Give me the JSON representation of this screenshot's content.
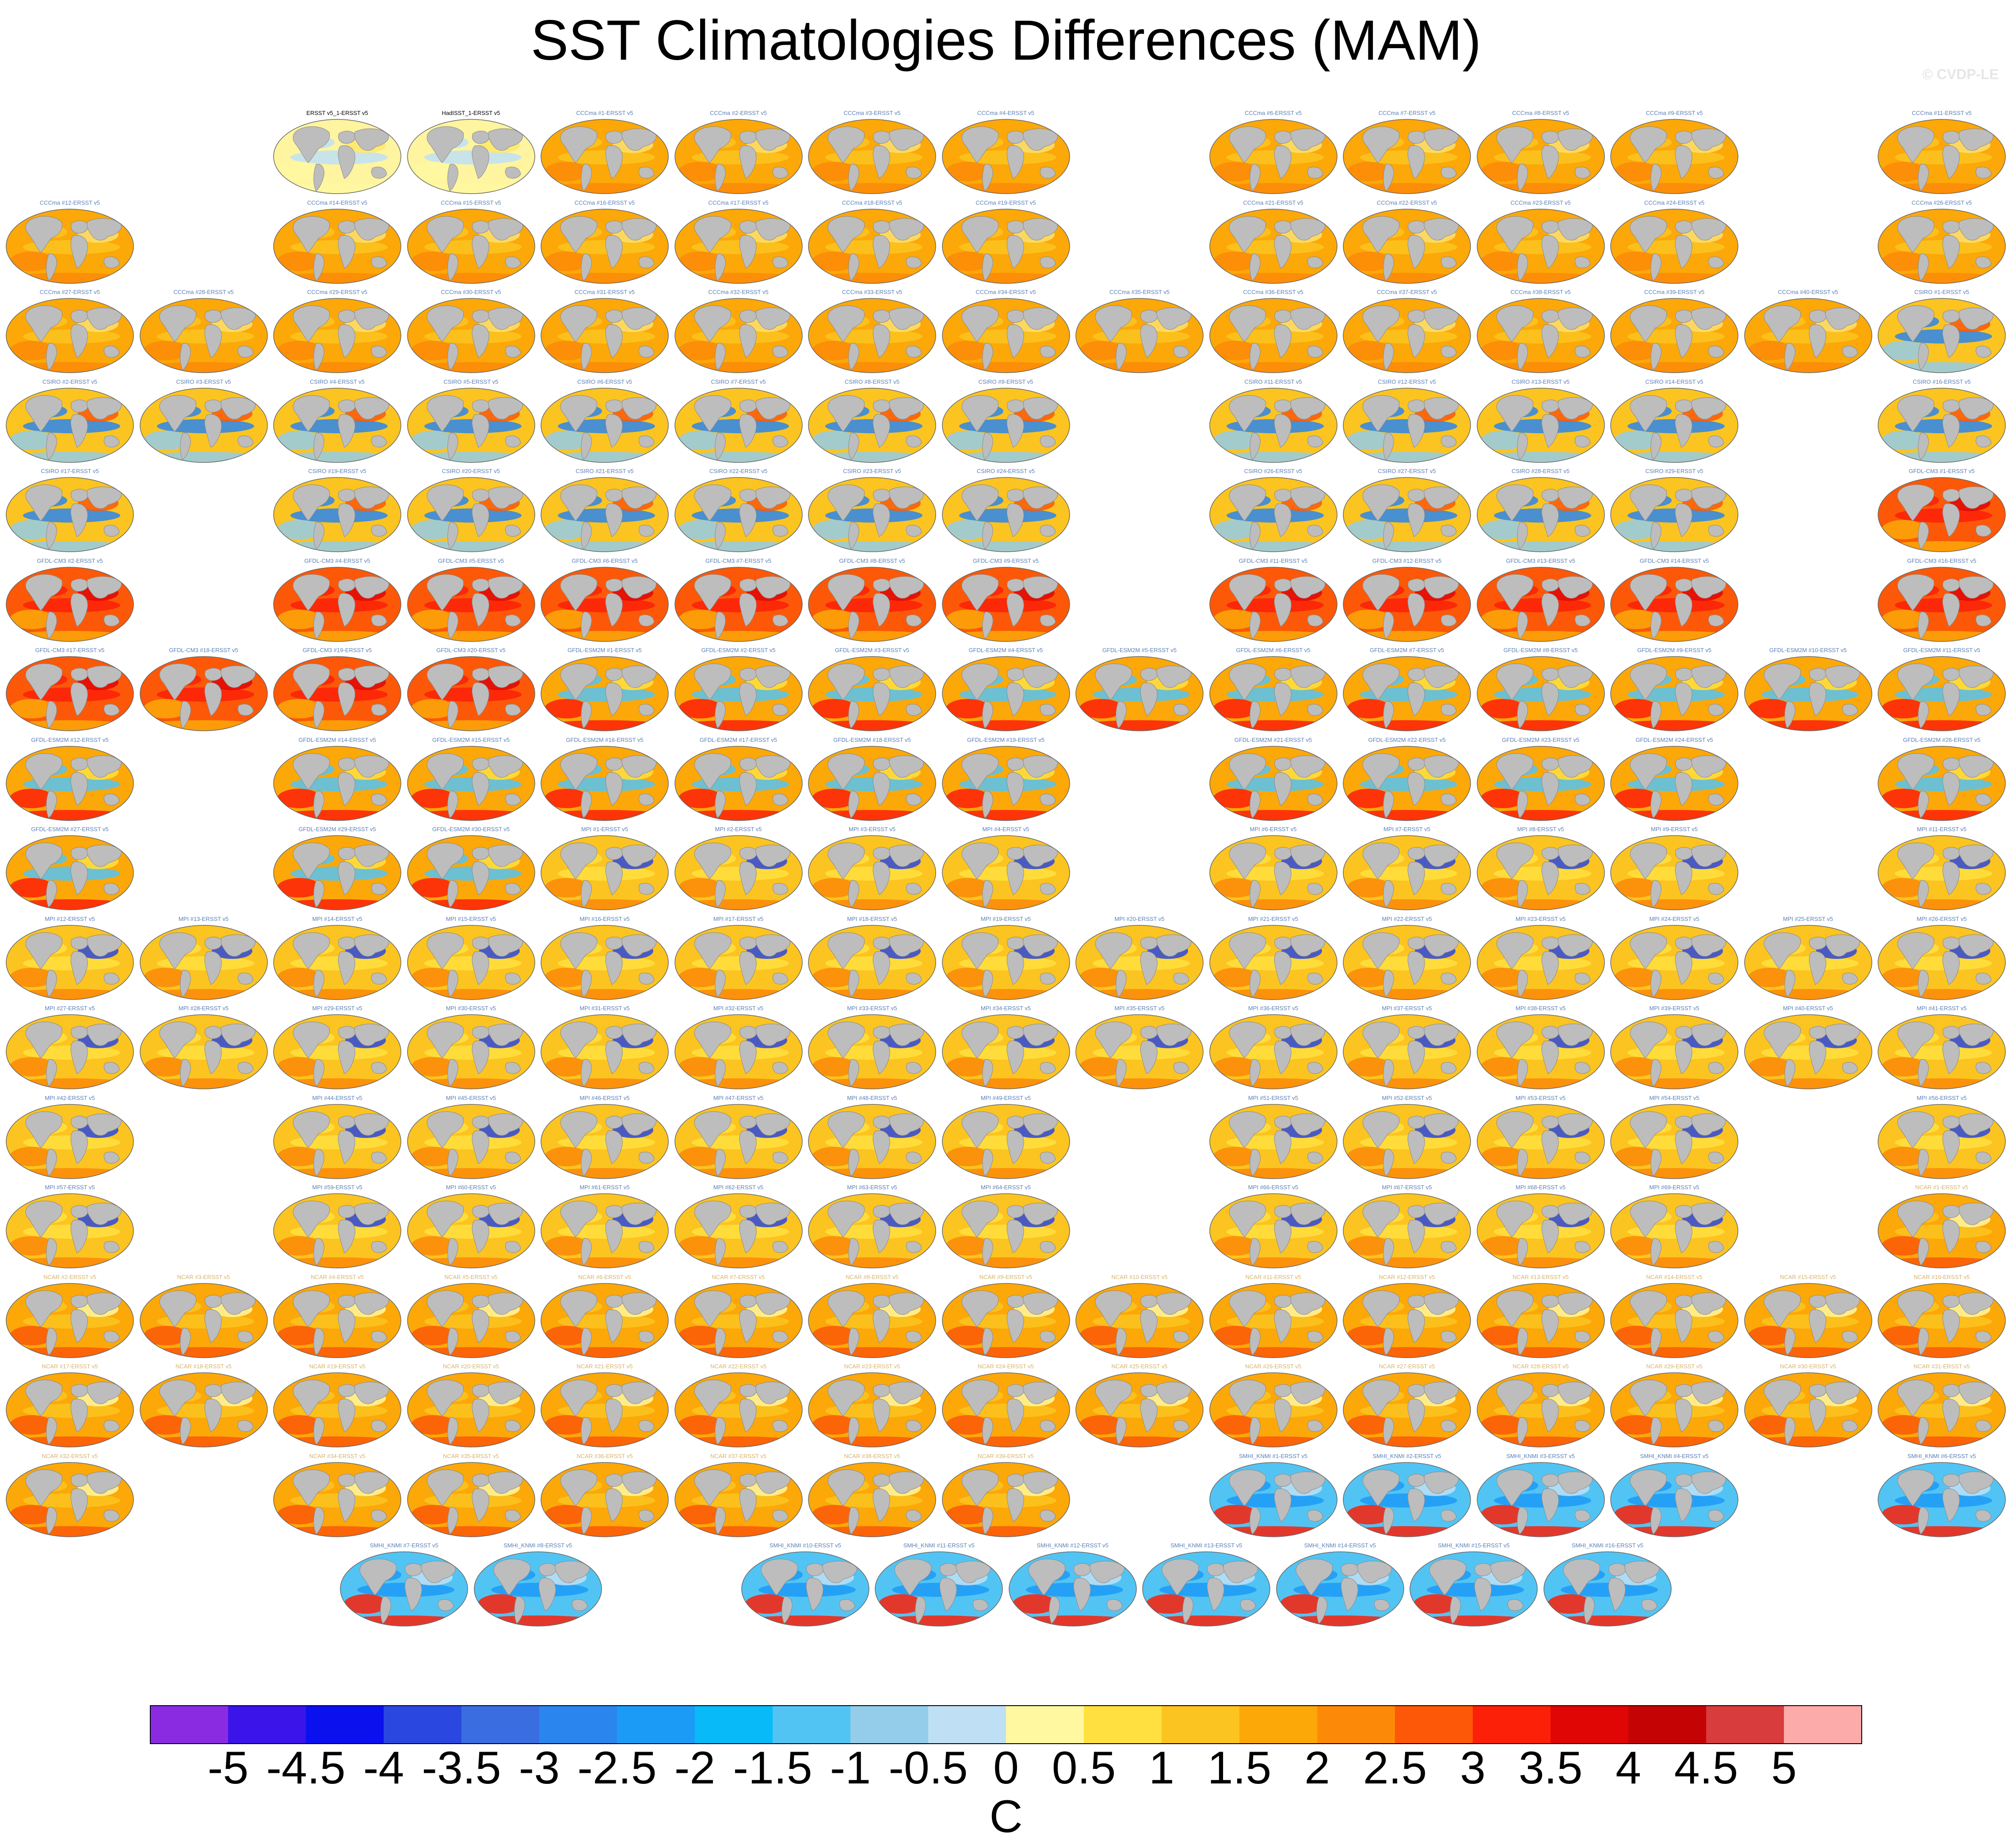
{
  "title": "SST Climatologies Differences (MAM)",
  "watermark": "© CVDP-LE",
  "chart_data": {
    "type": "heatmap",
    "title": "SST Climatologies Differences (MAM)",
    "colorbar": {
      "ticks": [
        "-5",
        "-4.5",
        "-4",
        "-3.5",
        "-3",
        "-2.5",
        "-2",
        "-1.5",
        "-1",
        "-0.5",
        "0",
        "0.5",
        "1",
        "1.5",
        "2",
        "2.5",
        "3",
        "3.5",
        "4",
        "4.5",
        "5"
      ],
      "levels": [
        -5,
        -4.5,
        -4,
        -3.5,
        -3,
        -2.5,
        -2,
        -1.5,
        -1,
        -0.5,
        0,
        0.5,
        1,
        1.5,
        2,
        2.5,
        3,
        3.5,
        4,
        4.5,
        5
      ],
      "colors": [
        "#8a2be2",
        "#3a14e8",
        "#0a10ee",
        "#2a48e0",
        "#3a6ee0",
        "#2a86ee",
        "#1c9bf6",
        "#08baf8",
        "#52c4f4",
        "#94cdea",
        "#bfe0f4",
        "#fff8a0",
        "#ffe040",
        "#fcc420",
        "#fca808",
        "#fc8a08",
        "#fc5808",
        "#fc2008",
        "#e00606",
        "#c40404",
        "#d83c3c",
        "#fcaaaa"
      ],
      "unit": "C"
    },
    "panel_rows": [
      {
        "cols": [
          2,
          3,
          4,
          5,
          6,
          7,
          9,
          10,
          11,
          12,
          14
        ],
        "labels": [
          "ERSST v5_1-ERSST v5",
          "HadISST_1-ERSST v5",
          "CCCma #1-ERSST v5",
          "CCCma #2-ERSST v5",
          "CCCma #3-ERSST v5",
          "CCCma #4-ERSST v5",
          "CCCma #6-ERSST v5",
          "CCCma #7-ERSST v5",
          "CCCma #8-ERSST v5",
          "CCCma #9-ERSST v5",
          "CCCma #11-ERSST v5"
        ],
        "style": [
          "obs",
          "obs",
          "warm",
          "warm",
          "warm",
          "warm",
          "warm",
          "warm",
          "warm",
          "warm",
          "warm"
        ]
      },
      {
        "cols": [
          0,
          2,
          3,
          4,
          5,
          6,
          7,
          9,
          10,
          11,
          12,
          14
        ],
        "labels": [
          "CCCma #12-ERSST v5",
          "CCCma #14-ERSST v5",
          "CCCma #15-ERSST v5",
          "CCCma #16-ERSST v5",
          "CCCma #17-ERSST v5",
          "CCCma #18-ERSST v5",
          "CCCma #19-ERSST v5",
          "CCCma #21-ERSST v5",
          "CCCma #22-ERSST v5",
          "CCCma #23-ERSST v5",
          "CCCma #24-ERSST v5",
          "CCCma #26-ERSST v5"
        ],
        "style": "warm"
      },
      {
        "cols": [
          0,
          1,
          2,
          3,
          4,
          5,
          6,
          7,
          8,
          9,
          10,
          11,
          12,
          13,
          14
        ],
        "labels": [
          "CCCma #27-ERSST v5",
          "CCCma #28-ERSST v5",
          "CCCma #29-ERSST v5",
          "CCCma #30-ERSST v5",
          "CCCma #31-ERSST v5",
          "CCCma #32-ERSST v5",
          "CCCma #33-ERSST v5",
          "CCCma #34-ERSST v5",
          "CCCma #35-ERSST v5",
          "CCCma #36-ERSST v5",
          "CCCma #37-ERSST v5",
          "CCCma #38-ERSST v5",
          "CCCma #39-ERSST v5",
          "CCCma #40-ERSST v5",
          "CSIRO #1-ERSST v5"
        ],
        "style": [
          "warm",
          "warm",
          "warm",
          "warm",
          "warm",
          "warm",
          "warm",
          "warm",
          "warm",
          "warm",
          "warm",
          "warm",
          "warm",
          "warm",
          "csiro"
        ]
      },
      {
        "cols": [
          0,
          1,
          2,
          3,
          4,
          5,
          6,
          7,
          9,
          10,
          11,
          12,
          14
        ],
        "labels": [
          "CSIRO #2-ERSST v5",
          "CSIRO #3-ERSST v5",
          "CSIRO #4-ERSST v5",
          "CSIRO #5-ERSST v5",
          "CSIRO #6-ERSST v5",
          "CSIRO #7-ERSST v5",
          "CSIRO #8-ERSST v5",
          "CSIRO #9-ERSST v5",
          "CSIRO #11-ERSST v5",
          "CSIRO #12-ERSST v5",
          "CSIRO #13-ERSST v5",
          "CSIRO #14-ERSST v5",
          "CSIRO #16-ERSST v5"
        ],
        "style": "csiro"
      },
      {
        "cols": [
          0,
          2,
          3,
          4,
          5,
          6,
          7,
          9,
          10,
          11,
          12,
          14
        ],
        "labels": [
          "CSIRO #17-ERSST v5",
          "CSIRO #19-ERSST v5",
          "CSIRO #20-ERSST v5",
          "CSIRO #21-ERSST v5",
          "CSIRO #22-ERSST v5",
          "CSIRO #23-ERSST v5",
          "CSIRO #24-ERSST v5",
          "CSIRO #26-ERSST v5",
          "CSIRO #27-ERSST v5",
          "CSIRO #28-ERSST v5",
          "CSIRO #29-ERSST v5",
          "GFDL-CM3 #1-ERSST v5"
        ],
        "style": [
          "csiro",
          "csiro",
          "csiro",
          "csiro",
          "csiro",
          "csiro",
          "csiro",
          "csiro",
          "csiro",
          "csiro",
          "csiro",
          "hot"
        ]
      },
      {
        "cols": [
          0,
          2,
          3,
          4,
          5,
          6,
          7,
          9,
          10,
          11,
          12,
          14
        ],
        "labels": [
          "GFDL-CM3 #2-ERSST v5",
          "GFDL-CM3 #4-ERSST v5",
          "GFDL-CM3 #5-ERSST v5",
          "GFDL-CM3 #6-ERSST v5",
          "GFDL-CM3 #7-ERSST v5",
          "GFDL-CM3 #8-ERSST v5",
          "GFDL-CM3 #9-ERSST v5",
          "GFDL-CM3 #11-ERSST v5",
          "GFDL-CM3 #12-ERSST v5",
          "GFDL-CM3 #13-ERSST v5",
          "GFDL-CM3 #14-ERSST v5",
          "GFDL-CM3 #16-ERSST v5"
        ],
        "style": "hot"
      },
      {
        "cols": [
          0,
          1,
          2,
          3,
          4,
          5,
          6,
          7,
          8,
          9,
          10,
          11,
          12,
          13,
          14
        ],
        "labels": [
          "GFDL-CM3 #17-ERSST v5",
          "GFDL-CM3 #18-ERSST v5",
          "GFDL-CM3 #19-ERSST v5",
          "GFDL-CM3 #20-ERSST v5",
          "GFDL-ESM2M #1-ERSST v5",
          "GFDL-ESM2M #2-ERSST v5",
          "GFDL-ESM2M #3-ERSST v5",
          "GFDL-ESM2M #4-ERSST v5",
          "GFDL-ESM2M #5-ERSST v5",
          "GFDL-ESM2M #6-ERSST v5",
          "GFDL-ESM2M #7-ERSST v5",
          "GFDL-ESM2M #8-ERSST v5",
          "GFDL-ESM2M #9-ERSST v5",
          "GFDL-ESM2M #10-ERSST v5",
          "GFDL-ESM2M #11-ERSST v5"
        ],
        "style": [
          "hot",
          "hot",
          "hot",
          "hot",
          "gfdl",
          "gfdl",
          "gfdl",
          "gfdl",
          "gfdl",
          "gfdl",
          "gfdl",
          "gfdl",
          "gfdl",
          "gfdl",
          "gfdl"
        ]
      },
      {
        "cols": [
          0,
          2,
          3,
          4,
          5,
          6,
          7,
          9,
          10,
          11,
          12,
          14
        ],
        "labels": [
          "GFDL-ESM2M #12-ERSST v5",
          "GFDL-ESM2M #14-ERSST v5",
          "GFDL-ESM2M #15-ERSST v5",
          "GFDL-ESM2M #16-ERSST v5",
          "GFDL-ESM2M #17-ERSST v5",
          "GFDL-ESM2M #18-ERSST v5",
          "GFDL-ESM2M #19-ERSST v5",
          "GFDL-ESM2M #21-ERSST v5",
          "GFDL-ESM2M #22-ERSST v5",
          "GFDL-ESM2M #23-ERSST v5",
          "GFDL-ESM2M #24-ERSST v5",
          "GFDL-ESM2M #26-ERSST v5"
        ],
        "style": "gfdl"
      },
      {
        "cols": [
          0,
          2,
          3,
          4,
          5,
          6,
          7,
          9,
          10,
          11,
          12,
          14
        ],
        "labels": [
          "GFDL-ESM2M #27-ERSST v5",
          "GFDL-ESM2M #29-ERSST v5",
          "GFDL-ESM2M #30-ERSST v5",
          "MPI #1-ERSST v5",
          "MPI #2-ERSST v5",
          "MPI #3-ERSST v5",
          "MPI #4-ERSST v5",
          "MPI #6-ERSST v5",
          "MPI #7-ERSST v5",
          "MPI #8-ERSST v5",
          "MPI #9-ERSST v5",
          "MPI #11-ERSST v5"
        ],
        "style": [
          "gfdl",
          "gfdl",
          "gfdl",
          "mpi",
          "mpi",
          "mpi",
          "mpi",
          "mpi",
          "mpi",
          "mpi",
          "mpi",
          "mpi"
        ]
      },
      {
        "cols": [
          0,
          1,
          2,
          3,
          4,
          5,
          6,
          7,
          8,
          9,
          10,
          11,
          12,
          13,
          14
        ],
        "labels": [
          "MPI #12-ERSST v5",
          "MPI #13-ERSST v5",
          "MPI #14-ERSST v5",
          "MPI #15-ERSST v5",
          "MPI #16-ERSST v5",
          "MPI #17-ERSST v5",
          "MPI #18-ERSST v5",
          "MPI #19-ERSST v5",
          "MPI #20-ERSST v5",
          "MPI #21-ERSST v5",
          "MPI #22-ERSST v5",
          "MPI #23-ERSST v5",
          "MPI #24-ERSST v5",
          "MPI #25-ERSST v5",
          "MPI #26-ERSST v5"
        ],
        "style": "mpi"
      },
      {
        "cols": [
          0,
          1,
          2,
          3,
          4,
          5,
          6,
          7,
          8,
          9,
          10,
          11,
          12,
          13,
          14
        ],
        "labels": [
          "MPI #27-ERSST v5",
          "MPI #28-ERSST v5",
          "MPI #29-ERSST v5",
          "MPI #30-ERSST v5",
          "MPI #31-ERSST v5",
          "MPI #32-ERSST v5",
          "MPI #33-ERSST v5",
          "MPI #34-ERSST v5",
          "MPI #35-ERSST v5",
          "MPI #36-ERSST v5",
          "MPI #37-ERSST v5",
          "MPI #38-ERSST v5",
          "MPI #39-ERSST v5",
          "MPI #40-ERSST v5",
          "MPI #41-ERSST v5"
        ],
        "style": "mpi"
      },
      {
        "cols": [
          0,
          2,
          3,
          4,
          5,
          6,
          7,
          9,
          10,
          11,
          12,
          14
        ],
        "labels": [
          "MPI #42-ERSST v5",
          "MPI #44-ERSST v5",
          "MPI #45-ERSST v5",
          "MPI #46-ERSST v5",
          "MPI #47-ERSST v5",
          "MPI #48-ERSST v5",
          "MPI #49-ERSST v5",
          "MPI #51-ERSST v5",
          "MPI #52-ERSST v5",
          "MPI #53-ERSST v5",
          "MPI #54-ERSST v5",
          "MPI #56-ERSST v5"
        ],
        "style": "mpi"
      },
      {
        "cols": [
          0,
          2,
          3,
          4,
          5,
          6,
          7,
          9,
          10,
          11,
          12,
          14
        ],
        "labels": [
          "MPI #57-ERSST v5",
          "MPI #59-ERSST v5",
          "MPI #60-ERSST v5",
          "MPI #61-ERSST v5",
          "MPI #62-ERSST v5",
          "MPI #63-ERSST v5",
          "MPI #64-ERSST v5",
          "MPI #66-ERSST v5",
          "MPI #67-ERSST v5",
          "MPI #68-ERSST v5",
          "MPI #69-ERSST v5",
          "NCAR #1-ERSST v5"
        ],
        "style": [
          "mpi",
          "mpi",
          "mpi",
          "mpi",
          "mpi",
          "mpi",
          "mpi",
          "mpi",
          "mpi",
          "mpi",
          "mpi",
          "ncar"
        ]
      },
      {
        "cols": [
          0,
          1,
          2,
          3,
          4,
          5,
          6,
          7,
          8,
          9,
          10,
          11,
          12,
          13,
          14
        ],
        "labels": [
          "NCAR #2-ERSST v5",
          "NCAR #3-ERSST v5",
          "NCAR #4-ERSST v5",
          "NCAR #5-ERSST v5",
          "NCAR #6-ERSST v5",
          "NCAR #7-ERSST v5",
          "NCAR #8-ERSST v5",
          "NCAR #9-ERSST v5",
          "NCAR #10-ERSST v5",
          "NCAR #11-ERSST v5",
          "NCAR #12-ERSST v5",
          "NCAR #13-ERSST v5",
          "NCAR #14-ERSST v5",
          "NCAR #15-ERSST v5",
          "NCAR #16-ERSST v5"
        ],
        "style": "ncar"
      },
      {
        "cols": [
          0,
          1,
          2,
          3,
          4,
          5,
          6,
          7,
          8,
          9,
          10,
          11,
          12,
          13,
          14
        ],
        "labels": [
          "NCAR #17-ERSST v5",
          "NCAR #18-ERSST v5",
          "NCAR #19-ERSST v5",
          "NCAR #20-ERSST v5",
          "NCAR #21-ERSST v5",
          "NCAR #22-ERSST v5",
          "NCAR #23-ERSST v5",
          "NCAR #24-ERSST v5",
          "NCAR #25-ERSST v5",
          "NCAR #26-ERSST v5",
          "NCAR #27-ERSST v5",
          "NCAR #28-ERSST v5",
          "NCAR #29-ERSST v5",
          "NCAR #30-ERSST v5",
          "NCAR #31-ERSST v5"
        ],
        "style": "ncar"
      },
      {
        "cols": [
          0,
          2,
          3,
          4,
          5,
          6,
          7,
          9,
          10,
          11,
          12,
          14
        ],
        "labels": [
          "NCAR #32-ERSST v5",
          "NCAR #34-ERSST v5",
          "NCAR #35-ERSST v5",
          "NCAR #36-ERSST v5",
          "NCAR #37-ERSST v5",
          "NCAR #38-ERSST v5",
          "NCAR #39-ERSST v5",
          "SMHI_KNMI #1-ERSST v5",
          "SMHI_KNMI #2-ERSST v5",
          "SMHI_KNMI #3-ERSST v5",
          "SMHI_KNMI #4-ERSST v5",
          "SMHI_KNMI #6-ERSST v5"
        ],
        "style": [
          "ncar",
          "ncar",
          "ncar",
          "ncar",
          "ncar",
          "ncar",
          "ncar",
          "smhi",
          "smhi",
          "smhi",
          "smhi",
          "smhi"
        ]
      },
      {
        "cols": [
          2.5,
          3.5,
          5.5,
          6.5,
          7.5,
          8.5,
          9.5,
          10.5,
          11.5
        ],
        "labels": [
          "SMHI_KNMI #7-ERSST v5",
          "SMHI_KNMI #8-ERSST v5",
          "SMHI_KNMI #10-ERSST v5",
          "SMHI_KNMI #11-ERSST v5",
          "SMHI_KNMI #12-ERSST v5",
          "SMHI_KNMI #13-ERSST v5",
          "SMHI_KNMI #14-ERSST v5",
          "SMHI_KNMI #15-ERSST v5",
          "SMHI_KNMI #16-ERSST v5"
        ],
        "style": "smhi"
      }
    ]
  }
}
